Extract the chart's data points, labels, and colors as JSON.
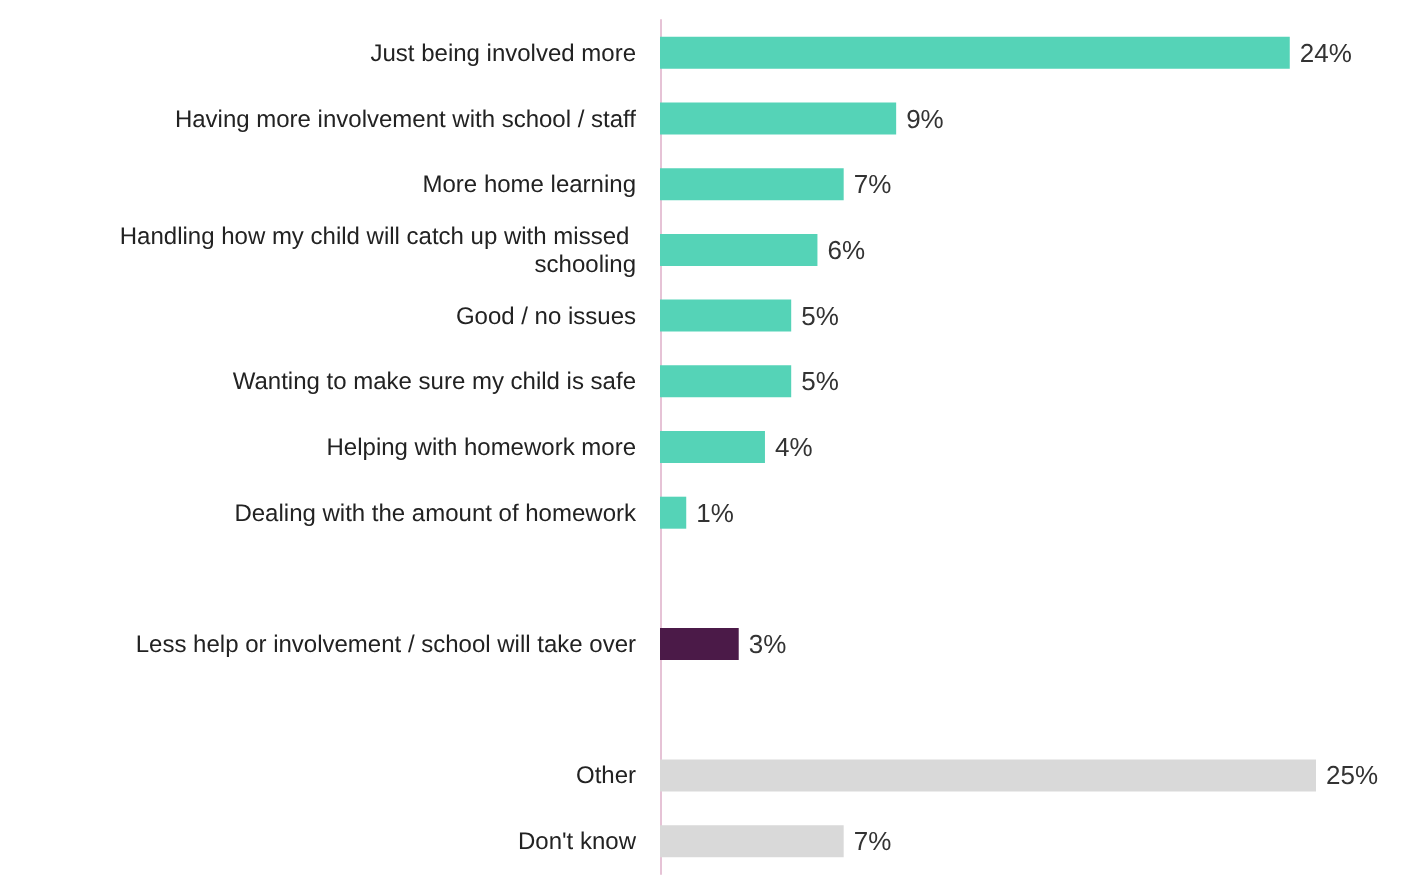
{
  "chart_data": {
    "type": "bar",
    "orientation": "horizontal",
    "categories": [
      "Just being involved more",
      "Having more involvement with school / staff",
      "More home learning",
      "Handling how my child will catch up with missed schooling",
      "Good / no issues",
      "Wanting to make sure my child is safe",
      "Helping with homework more",
      "Dealing with the amount of homework",
      null,
      "Less help or involvement / school will take over",
      null,
      "Other",
      "Don't know"
    ],
    "values": [
      24,
      9,
      7,
      6,
      5,
      5,
      4,
      1,
      null,
      3,
      null,
      25,
      7
    ],
    "value_labels": [
      "24%",
      "9%",
      "7%",
      "6%",
      "5%",
      "5%",
      "4%",
      "1%",
      null,
      "3%",
      null,
      "25%",
      "7%"
    ],
    "colors": [
      "#55d3b7",
      "#55d3b7",
      "#55d3b7",
      "#55d3b7",
      "#55d3b7",
      "#55d3b7",
      "#55d3b7",
      "#55d3b7",
      "#55d3b7",
      "#4b1a48",
      "#d9d9d9",
      "#d9d9d9",
      "#d9d9d9"
    ],
    "grid": false
  }
}
